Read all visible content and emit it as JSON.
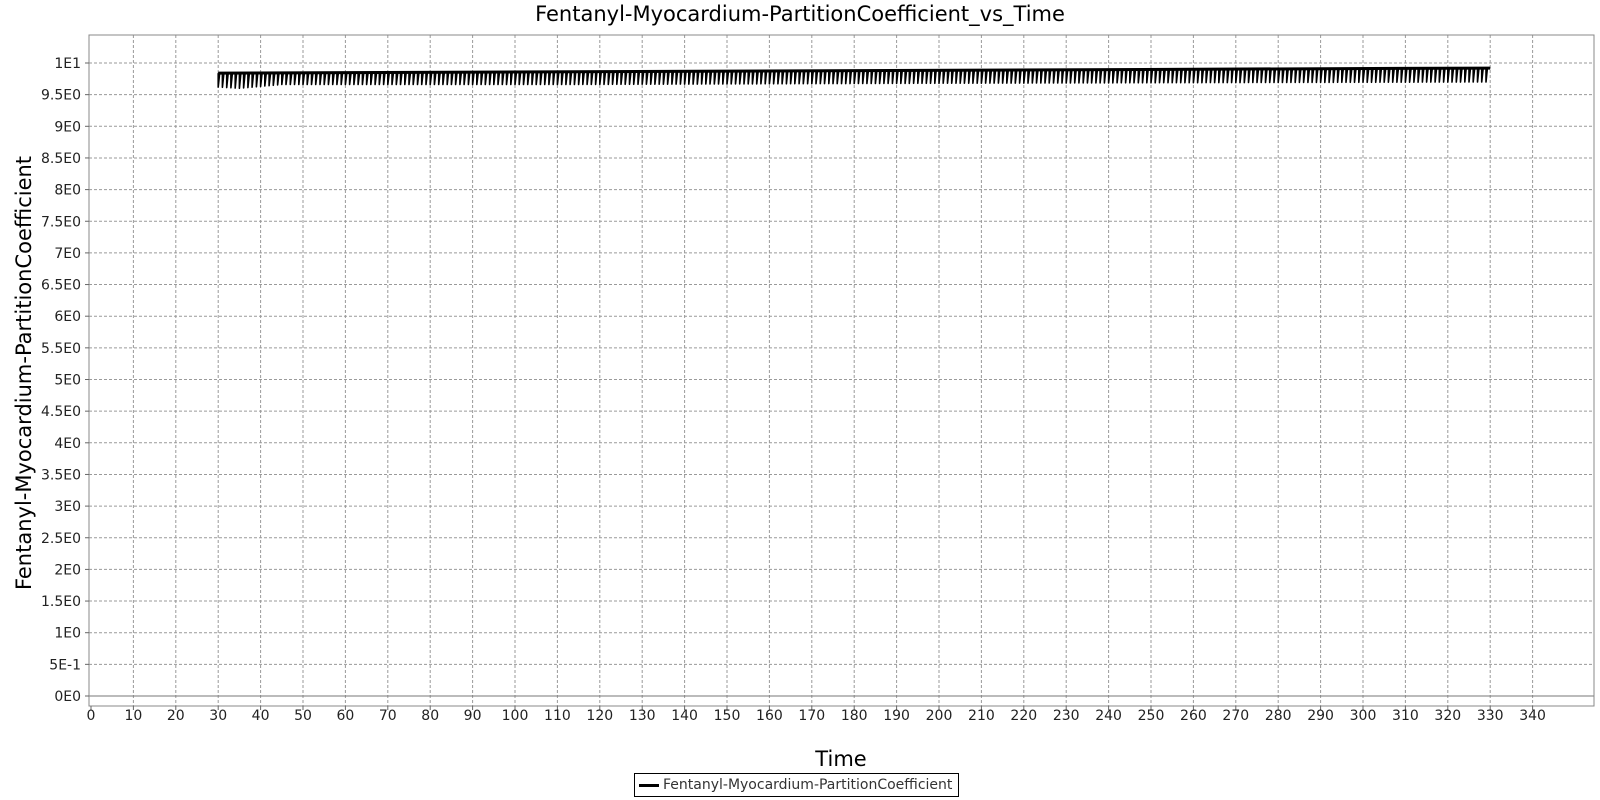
{
  "chart_data": {
    "type": "line",
    "title": "Fentanyl-Myocardium-PartitionCoefficient_vs_Time",
    "xlabel": "Time",
    "ylabel": "Fentanyl-Myocardium-PartitionCoefficient",
    "xlim": [
      0,
      345
    ],
    "ylim": [
      0,
      10.5
    ],
    "x_ticks": [
      "0",
      "10",
      "20",
      "30",
      "40",
      "50",
      "60",
      "70",
      "80",
      "90",
      "100",
      "110",
      "120",
      "130",
      "140",
      "150",
      "160",
      "170",
      "180",
      "190",
      "200",
      "210",
      "220",
      "230",
      "240",
      "250",
      "260",
      "270",
      "280",
      "290",
      "300",
      "310",
      "320",
      "330",
      "340"
    ],
    "y_ticks": [
      "0E0",
      "5E-1",
      "1E0",
      "1.5E0",
      "2E0",
      "2.5E0",
      "3E0",
      "3.5E0",
      "4E0",
      "4.5E0",
      "5E0",
      "5.5E0",
      "6E0",
      "6.5E0",
      "7E0",
      "7.5E0",
      "8E0",
      "8.5E0",
      "9E0",
      "9.5E0",
      "1E1"
    ],
    "grid": true,
    "legend_position": "bottom",
    "series": [
      {
        "name": "Fentanyl-Myocardium-PartitionCoefficient",
        "color": "#000000",
        "x_start": 30,
        "x_end": 330,
        "oscillation_period": 1,
        "upper_envelope": {
          "x": [
            30,
            330
          ],
          "y": [
            9.84,
            9.92
          ]
        },
        "lower_envelope": {
          "x": [
            30,
            35,
            45,
            110,
            200,
            330
          ],
          "y": [
            9.62,
            9.6,
            9.66,
            9.66,
            9.68,
            9.7
          ]
        }
      }
    ]
  }
}
